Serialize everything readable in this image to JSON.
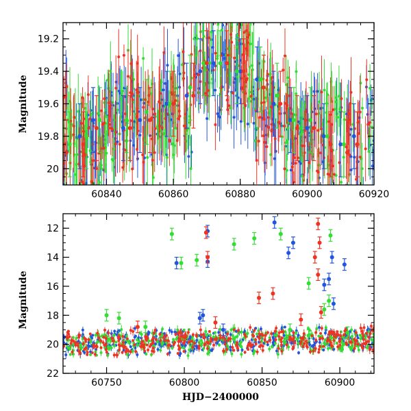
{
  "chart_data": [
    {
      "type": "scatter",
      "panel": "top",
      "xlabel": "",
      "ylabel": "Magnitude",
      "xlim": [
        60827,
        60920
      ],
      "ylim": [
        20.1,
        19.1
      ],
      "y_inverted": true,
      "x_ticks": [
        60840,
        60860,
        60880,
        60900,
        60920
      ],
      "y_ticks": [
        19.2,
        19.4,
        19.6,
        19.8,
        20
      ],
      "grid": false,
      "series": [
        {
          "color": "#2255dd",
          "x": [
            60828,
            60832,
            60836,
            60845,
            60850,
            60858,
            60864,
            60868,
            60872,
            60880,
            60885,
            60890,
            60895,
            60900,
            60905,
            60910,
            60914
          ],
          "y": [
            19.9,
            19.8,
            19.7,
            19.75,
            19.7,
            19.6,
            19.55,
            19.4,
            19.35,
            19.4,
            19.45,
            19.6,
            19.7,
            19.75,
            19.8,
            19.85,
            19.8
          ]
        },
        {
          "color": "#33dd33",
          "x": [
            60829,
            60834,
            60838,
            60846,
            60852,
            60859,
            60865,
            60869,
            60874,
            60879,
            60886,
            60891,
            60896,
            60901,
            60906,
            60911,
            60915
          ],
          "y": [
            19.85,
            19.8,
            19.7,
            19.7,
            19.65,
            19.6,
            19.5,
            19.35,
            19.35,
            19.4,
            19.45,
            19.55,
            19.7,
            19.7,
            19.8,
            19.85,
            19.85
          ]
        },
        {
          "color": "#ee3322",
          "x": [
            60828,
            60833,
            60837,
            60847,
            60853,
            60860,
            60866,
            60870,
            60876,
            60881,
            60887,
            60892,
            60897,
            60902,
            60907,
            60912,
            60915
          ],
          "y": [
            19.9,
            19.85,
            19.75,
            19.75,
            19.7,
            19.6,
            19.55,
            19.35,
            19.35,
            19.4,
            19.5,
            19.6,
            19.75,
            19.75,
            19.85,
            19.9,
            19.85
          ]
        }
      ]
    },
    {
      "type": "scatter",
      "panel": "bottom",
      "xlabel": "HJD−2400000",
      "ylabel": "Magnitude",
      "xlim": [
        60722,
        60922
      ],
      "ylim": [
        22,
        11
      ],
      "y_inverted": true,
      "x_ticks": [
        60750,
        60800,
        60850,
        60900
      ],
      "y_ticks": [
        12,
        14,
        16,
        18,
        20,
        22
      ],
      "grid": false,
      "series": [
        {
          "color": "#2255dd",
          "x": [
            60795,
            60812,
            60815,
            60815,
            60858,
            60870,
            60867,
            60895,
            60890,
            60893,
            60896,
            60903,
            60810,
            60825
          ],
          "y": [
            14.4,
            18.0,
            12.2,
            14.3,
            11.6,
            13.0,
            13.7,
            14.0,
            15.9,
            15.5,
            17.2,
            14.5,
            18.2,
            19.0
          ]
        },
        {
          "color": "#33dd33",
          "x": [
            60792,
            60798,
            60808,
            60832,
            60845,
            60862,
            60880,
            60894,
            60893,
            60750,
            60758,
            60775,
            60868,
            60880,
            60890,
            60905
          ],
          "y": [
            12.4,
            14.4,
            14.2,
            13.1,
            12.7,
            12.4,
            15.8,
            12.5,
            17.0,
            18.0,
            18.2,
            18.8,
            19.0,
            19.4,
            17.6,
            19.2
          ]
        },
        {
          "color": "#ee3322",
          "x": [
            60814,
            60815,
            60886,
            60887,
            60884,
            60886,
            60848,
            60857,
            60875,
            60770,
            60820,
            60888
          ],
          "y": [
            12.3,
            14.0,
            11.7,
            13.0,
            14.0,
            15.2,
            16.8,
            16.5,
            18.3,
            18.8,
            18.5,
            17.8
          ]
        }
      ]
    }
  ]
}
